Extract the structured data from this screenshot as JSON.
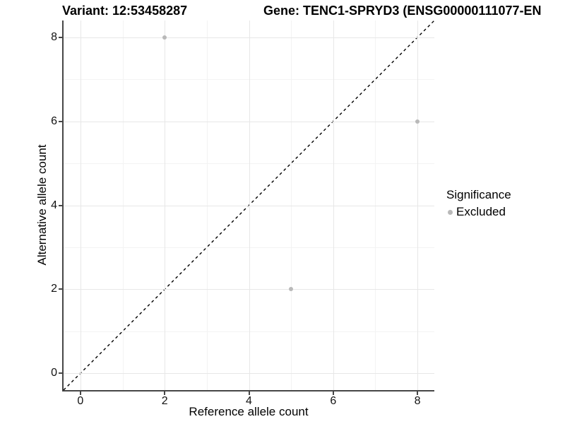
{
  "titles": {
    "variant": "Variant: 12:53458287",
    "gene": "Gene: TENC1-SPRYD3 (ENSG00000111077-EN"
  },
  "axes": {
    "x_label": "Reference allele count",
    "y_label": "Alternative allele count"
  },
  "legend": {
    "title": "Significance",
    "items": [
      {
        "label": "Excluded",
        "color": "#b9b9b9"
      }
    ]
  },
  "colors": {
    "axis_line": "#464646",
    "grid_major": "#e7e7e7",
    "grid_minor": "#f3f3f3",
    "point_excluded": "#b9b9b9",
    "reference_line": "#000000"
  },
  "chart_data": {
    "type": "scatter",
    "title": "Variant: 12:53458287",
    "title_right": "Gene: TENC1-SPRYD3 (ENSG00000111077-EN",
    "xlabel": "Reference allele count",
    "ylabel": "Alternative allele count",
    "xlim": [
      -0.4,
      8.4
    ],
    "ylim": [
      -0.4,
      8.4
    ],
    "xticks": [
      0,
      2,
      4,
      6,
      8
    ],
    "yticks": [
      0,
      2,
      4,
      6,
      8
    ],
    "x_minor": [
      1,
      3,
      5,
      7
    ],
    "y_minor": [
      1,
      3,
      5,
      7
    ],
    "grid": "on",
    "legend_position": "right-middle",
    "series": [
      {
        "name": "Excluded",
        "color": "#b9b9b9",
        "points": [
          [
            2,
            8
          ],
          [
            8,
            6
          ],
          [
            5,
            2
          ]
        ]
      }
    ],
    "reference_line": {
      "kind": "identity y=x",
      "style": "dashed",
      "color": "#000000",
      "span": [
        [
          -0.4,
          -0.4
        ],
        [
          8.4,
          8.4
        ]
      ]
    }
  }
}
